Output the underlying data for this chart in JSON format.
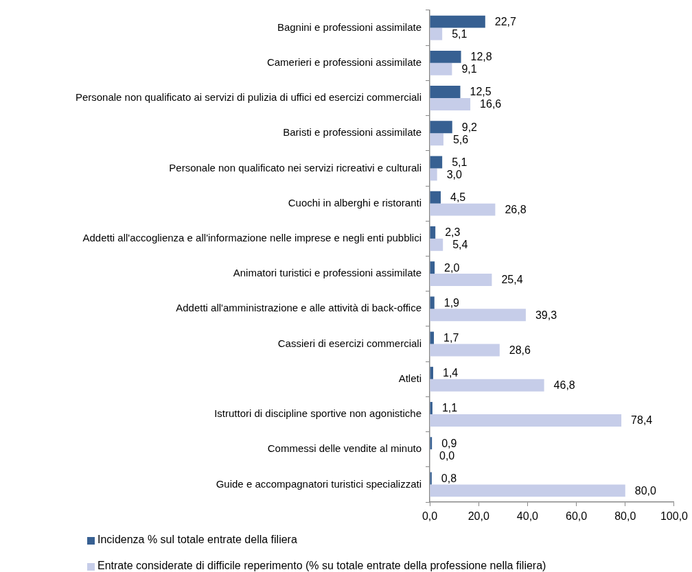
{
  "chart_data": {
    "type": "bar",
    "orientation": "horizontal",
    "categories": [
      "Bagnini e professioni assimilate",
      "Camerieri e professioni assimilate",
      "Personale non qualificato ai servizi di pulizia di uffici ed esercizi commerciali",
      "Baristi e professioni assimilate",
      "Personale non qualificato nei servizi ricreativi e culturali",
      "Cuochi in alberghi e ristoranti",
      "Addetti all'accoglienza e all'informazione nelle imprese e negli enti pubblici",
      "Animatori turistici e professioni assimilate",
      "Addetti all'amministrazione e alle attività di back-office",
      "Cassieri di esercizi commerciali",
      "Atleti",
      "Istruttori di discipline sportive non agonistiche",
      "Commessi delle vendite al minuto",
      "Guide e accompagnatori turistici specializzati"
    ],
    "series": [
      {
        "name": "Incidenza % sul totale entrate della filiera",
        "color": "#376092",
        "values": [
          22.7,
          12.8,
          12.5,
          9.2,
          5.1,
          4.5,
          2.3,
          2.0,
          1.9,
          1.7,
          1.4,
          1.1,
          0.9,
          0.8
        ],
        "value_labels": [
          "22,7",
          "12,8",
          "12,5",
          "9,2",
          "5,1",
          "4,5",
          "2,3",
          "2,0",
          "1,9",
          "1,7",
          "1,4",
          "1,1",
          "0,9",
          "0,8"
        ]
      },
      {
        "name": "Entrate considerate di difficile reperimento (% su totale entrate della professione nella filiera)",
        "color": "#c6cde9",
        "values": [
          5.1,
          9.1,
          16.6,
          5.6,
          3.0,
          26.8,
          5.4,
          25.4,
          39.3,
          28.6,
          46.8,
          78.4,
          0.0,
          80.0
        ],
        "value_labels": [
          "5,1",
          "9,1",
          "16,6",
          "5,6",
          "3,0",
          "26,8",
          "5,4",
          "25,4",
          "39,3",
          "28,6",
          "46,8",
          "78,4",
          "0,0",
          "80,0"
        ]
      }
    ],
    "xlim": [
      0,
      100
    ],
    "xticks": [
      {
        "value": 0,
        "label": "0,0"
      },
      {
        "value": 20,
        "label": "20,0"
      },
      {
        "value": 40,
        "label": "40,0"
      },
      {
        "value": 60,
        "label": "60,0"
      },
      {
        "value": 80,
        "label": "80,0"
      },
      {
        "value": 100,
        "label": "100,0"
      }
    ],
    "grid": false,
    "legend": "bottom left"
  }
}
